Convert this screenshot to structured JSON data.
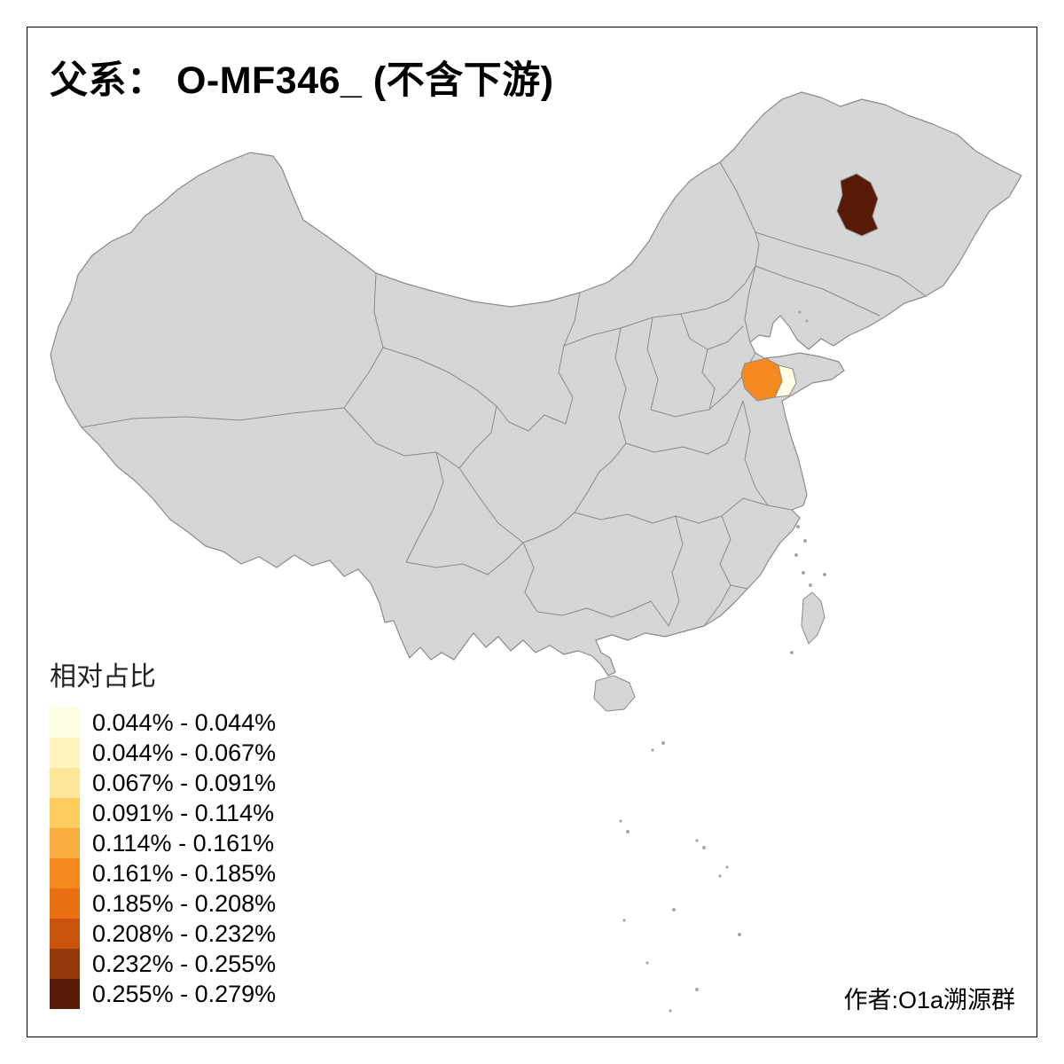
{
  "title": "父系： O-MF346_ (不含下游)",
  "legend": {
    "title": "相对占比",
    "items": [
      {
        "label": "0.044% - 0.044%",
        "color": "#FFFFE3"
      },
      {
        "label": "0.044% - 0.067%",
        "color": "#FEF5BE"
      },
      {
        "label": "0.067% - 0.091%",
        "color": "#FDE59A"
      },
      {
        "label": "0.091% - 0.114%",
        "color": "#FDCB5E"
      },
      {
        "label": "0.114% - 0.161%",
        "color": "#FBAC3E"
      },
      {
        "label": "0.161% - 0.185%",
        "color": "#F68A21"
      },
      {
        "label": "0.185% - 0.208%",
        "color": "#E86F12"
      },
      {
        "label": "0.208% - 0.232%",
        "color": "#C9530B"
      },
      {
        "label": "0.232% - 0.255%",
        "color": "#93390A"
      },
      {
        "label": "0.255% - 0.279%",
        "color": "#571A07"
      }
    ]
  },
  "credit": "作者:O1a溯源群",
  "map": {
    "base_fill": "#D6D6D6",
    "border_color": "#8A8A8A",
    "background": "#FFFFFF",
    "highlights": [
      {
        "name": "northeast-region",
        "color": "#571A07"
      },
      {
        "name": "north-jiangsu-region",
        "color": "#F68A21"
      },
      {
        "name": "jiangsu-coastal-region",
        "color": "#FFFFE3"
      }
    ]
  }
}
